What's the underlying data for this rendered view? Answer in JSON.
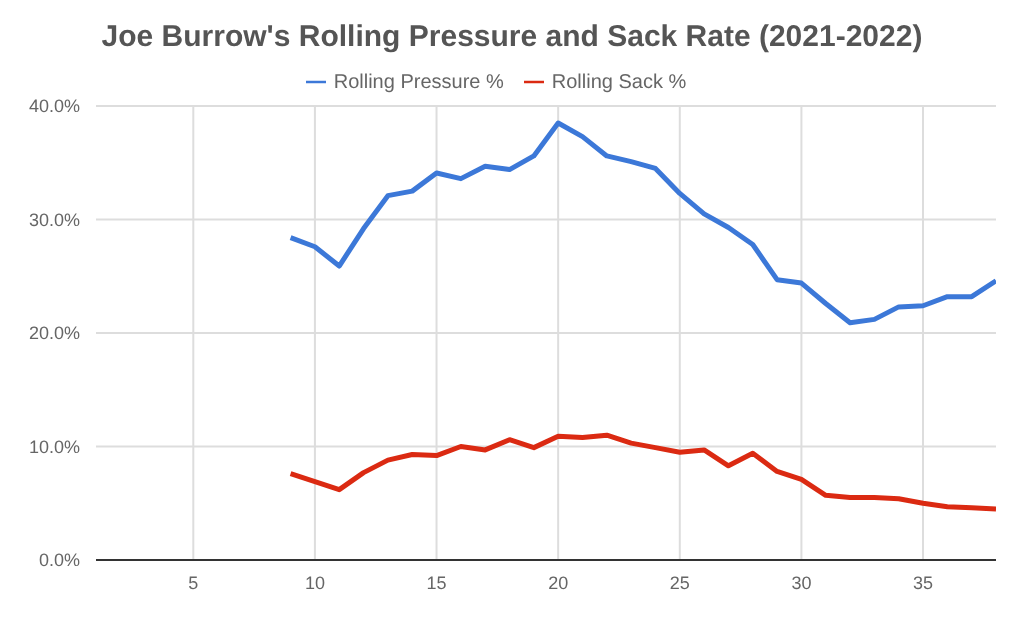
{
  "chart_data": {
    "type": "line",
    "title": "Joe Burrow's Rolling Pressure and Sack Rate (2021-2022)",
    "x": [
      9,
      10,
      11,
      12,
      13,
      14,
      15,
      16,
      17,
      18,
      19,
      20,
      21,
      22,
      23,
      24,
      25,
      26,
      27,
      28,
      29,
      30,
      31,
      32,
      33,
      34,
      35,
      36,
      37,
      38
    ],
    "series": [
      {
        "name": "Rolling Pressure %",
        "color": "#3c78d8",
        "values": [
          28.4,
          27.6,
          25.9,
          29.2,
          32.1,
          32.5,
          34.1,
          33.6,
          34.7,
          34.4,
          35.6,
          38.5,
          37.3,
          35.6,
          35.1,
          34.5,
          32.3,
          30.5,
          29.3,
          27.8,
          24.7,
          24.4,
          22.6,
          20.9,
          21.2,
          22.3,
          22.4,
          23.2,
          23.2,
          24.6
        ]
      },
      {
        "name": "Rolling Sack %",
        "color": "#db2a12",
        "values": [
          7.6,
          6.9,
          6.2,
          7.7,
          8.8,
          9.3,
          9.2,
          10.0,
          9.7,
          10.6,
          9.9,
          10.9,
          10.8,
          11.0,
          10.3,
          9.9,
          9.5,
          9.7,
          8.3,
          9.4,
          7.8,
          7.1,
          5.7,
          5.5,
          5.5,
          5.4,
          5.0,
          4.7,
          4.6,
          4.5
        ]
      }
    ],
    "xlim": [
      1,
      38
    ],
    "xticks": [
      5,
      10,
      15,
      20,
      25,
      30,
      35
    ],
    "ylim": [
      0,
      40
    ],
    "yticks": [
      {
        "value": 0,
        "label": "0.0%"
      },
      {
        "value": 10,
        "label": "10.0%"
      },
      {
        "value": 20,
        "label": "20.0%"
      },
      {
        "value": 30,
        "label": "30.0%"
      },
      {
        "value": 40,
        "label": "40.0%"
      }
    ],
    "grid": true,
    "legend": "top",
    "marker": "none",
    "line_style": "solid"
  }
}
